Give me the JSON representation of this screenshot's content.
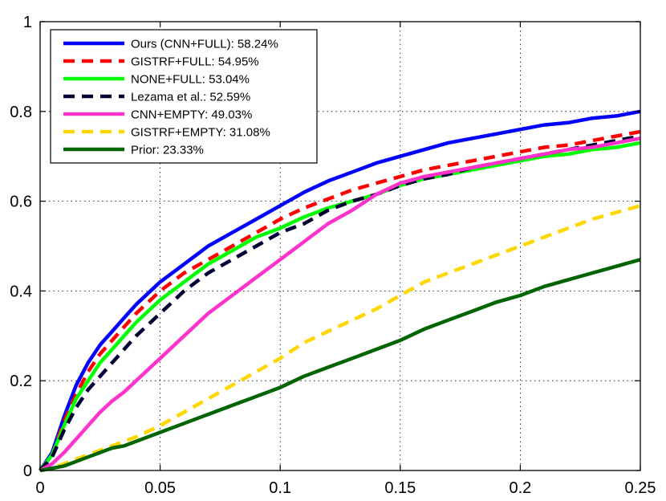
{
  "chart_data": {
    "type": "line",
    "title": "",
    "xlabel": "",
    "ylabel": "",
    "xlim": [
      0,
      0.25
    ],
    "ylim": [
      0,
      1
    ],
    "xticks": [
      "0",
      "0.05",
      "0.1",
      "0.15",
      "0.2",
      "0.25"
    ],
    "yticks": [
      "0",
      "0.2",
      "0.4",
      "0.6",
      "0.8",
      "1"
    ],
    "grid": true,
    "legend_position": "top-left",
    "series": [
      {
        "name": "Ours (CNN+FULL):  58.24%",
        "color": "#0000ff",
        "dash": "solid",
        "x": [
          0,
          0.005,
          0.01,
          0.015,
          0.02,
          0.025,
          0.03,
          0.035,
          0.04,
          0.05,
          0.06,
          0.07,
          0.08,
          0.09,
          0.1,
          0.11,
          0.12,
          0.13,
          0.14,
          0.15,
          0.16,
          0.17,
          0.18,
          0.19,
          0.2,
          0.21,
          0.22,
          0.23,
          0.24,
          0.25
        ],
        "y": [
          0,
          0.04,
          0.12,
          0.19,
          0.24,
          0.28,
          0.31,
          0.34,
          0.37,
          0.42,
          0.46,
          0.5,
          0.53,
          0.56,
          0.59,
          0.62,
          0.645,
          0.665,
          0.685,
          0.7,
          0.715,
          0.73,
          0.74,
          0.75,
          0.76,
          0.77,
          0.775,
          0.785,
          0.79,
          0.8
        ]
      },
      {
        "name": "GISTRF+FULL:  54.95%",
        "color": "#ff0000",
        "dash": "dashed",
        "x": [
          0,
          0.005,
          0.01,
          0.015,
          0.02,
          0.025,
          0.03,
          0.035,
          0.04,
          0.05,
          0.06,
          0.07,
          0.08,
          0.09,
          0.1,
          0.11,
          0.12,
          0.13,
          0.14,
          0.15,
          0.16,
          0.17,
          0.18,
          0.19,
          0.2,
          0.21,
          0.22,
          0.23,
          0.24,
          0.25
        ],
        "y": [
          0,
          0.035,
          0.11,
          0.17,
          0.22,
          0.26,
          0.29,
          0.32,
          0.35,
          0.4,
          0.44,
          0.47,
          0.5,
          0.53,
          0.56,
          0.585,
          0.605,
          0.625,
          0.64,
          0.655,
          0.67,
          0.68,
          0.69,
          0.7,
          0.71,
          0.72,
          0.725,
          0.735,
          0.745,
          0.755
        ]
      },
      {
        "name": "NONE+FULL:  53.04%",
        "color": "#00ff00",
        "dash": "solid",
        "x": [
          0,
          0.005,
          0.01,
          0.015,
          0.02,
          0.025,
          0.03,
          0.035,
          0.04,
          0.05,
          0.06,
          0.07,
          0.08,
          0.09,
          0.1,
          0.11,
          0.12,
          0.13,
          0.14,
          0.15,
          0.16,
          0.17,
          0.18,
          0.19,
          0.2,
          0.21,
          0.22,
          0.23,
          0.24,
          0.25
        ],
        "y": [
          0,
          0.035,
          0.1,
          0.16,
          0.2,
          0.24,
          0.27,
          0.3,
          0.33,
          0.38,
          0.42,
          0.46,
          0.49,
          0.52,
          0.54,
          0.565,
          0.585,
          0.6,
          0.615,
          0.635,
          0.65,
          0.66,
          0.67,
          0.68,
          0.69,
          0.7,
          0.705,
          0.715,
          0.72,
          0.73
        ]
      },
      {
        "name": "Lezama et al.:  52.59%",
        "color": "#000033",
        "dash": "dashed",
        "x": [
          0,
          0.005,
          0.01,
          0.015,
          0.02,
          0.025,
          0.03,
          0.035,
          0.04,
          0.05,
          0.06,
          0.07,
          0.08,
          0.09,
          0.1,
          0.11,
          0.12,
          0.13,
          0.14,
          0.15,
          0.16,
          0.17,
          0.18,
          0.19,
          0.2,
          0.21,
          0.22,
          0.23,
          0.24,
          0.25
        ],
        "y": [
          0,
          0.03,
          0.09,
          0.14,
          0.18,
          0.21,
          0.24,
          0.27,
          0.3,
          0.35,
          0.4,
          0.44,
          0.47,
          0.5,
          0.53,
          0.55,
          0.58,
          0.6,
          0.615,
          0.635,
          0.65,
          0.66,
          0.675,
          0.685,
          0.695,
          0.705,
          0.715,
          0.725,
          0.735,
          0.745
        ]
      },
      {
        "name": "CNN+EMPTY:  49.03%",
        "color": "#ff33cc",
        "dash": "solid",
        "x": [
          0,
          0.005,
          0.01,
          0.015,
          0.02,
          0.025,
          0.03,
          0.035,
          0.04,
          0.05,
          0.06,
          0.07,
          0.08,
          0.09,
          0.1,
          0.11,
          0.12,
          0.13,
          0.14,
          0.15,
          0.16,
          0.17,
          0.18,
          0.19,
          0.2,
          0.21,
          0.22,
          0.23,
          0.24,
          0.25
        ],
        "y": [
          0,
          0.015,
          0.04,
          0.07,
          0.1,
          0.13,
          0.155,
          0.175,
          0.2,
          0.25,
          0.3,
          0.35,
          0.39,
          0.43,
          0.47,
          0.51,
          0.55,
          0.58,
          0.615,
          0.64,
          0.655,
          0.665,
          0.675,
          0.685,
          0.695,
          0.705,
          0.715,
          0.72,
          0.73,
          0.74
        ]
      },
      {
        "name": "GISTRF+EMPTY:  31.08%",
        "color": "#ffd700",
        "dash": "dashed",
        "x": [
          0,
          0.005,
          0.01,
          0.015,
          0.02,
          0.025,
          0.03,
          0.035,
          0.04,
          0.05,
          0.06,
          0.07,
          0.08,
          0.09,
          0.1,
          0.11,
          0.12,
          0.13,
          0.14,
          0.15,
          0.16,
          0.17,
          0.18,
          0.19,
          0.2,
          0.21,
          0.22,
          0.23,
          0.24,
          0.25
        ],
        "y": [
          0,
          0.005,
          0.015,
          0.025,
          0.035,
          0.045,
          0.055,
          0.065,
          0.075,
          0.1,
          0.13,
          0.16,
          0.19,
          0.22,
          0.25,
          0.285,
          0.31,
          0.335,
          0.36,
          0.39,
          0.42,
          0.44,
          0.46,
          0.48,
          0.5,
          0.52,
          0.54,
          0.56,
          0.575,
          0.59
        ]
      },
      {
        "name": "Prior:  23.33%",
        "color": "#006400",
        "dash": "solid",
        "x": [
          0,
          0.005,
          0.01,
          0.015,
          0.02,
          0.025,
          0.03,
          0.035,
          0.04,
          0.05,
          0.06,
          0.07,
          0.08,
          0.09,
          0.1,
          0.11,
          0.12,
          0.13,
          0.14,
          0.15,
          0.16,
          0.17,
          0.18,
          0.19,
          0.2,
          0.21,
          0.22,
          0.23,
          0.24,
          0.25
        ],
        "y": [
          0,
          0.005,
          0.01,
          0.02,
          0.03,
          0.04,
          0.05,
          0.055,
          0.065,
          0.085,
          0.105,
          0.125,
          0.145,
          0.165,
          0.185,
          0.21,
          0.23,
          0.25,
          0.27,
          0.29,
          0.315,
          0.335,
          0.355,
          0.375,
          0.39,
          0.41,
          0.425,
          0.44,
          0.455,
          0.47
        ]
      }
    ]
  }
}
